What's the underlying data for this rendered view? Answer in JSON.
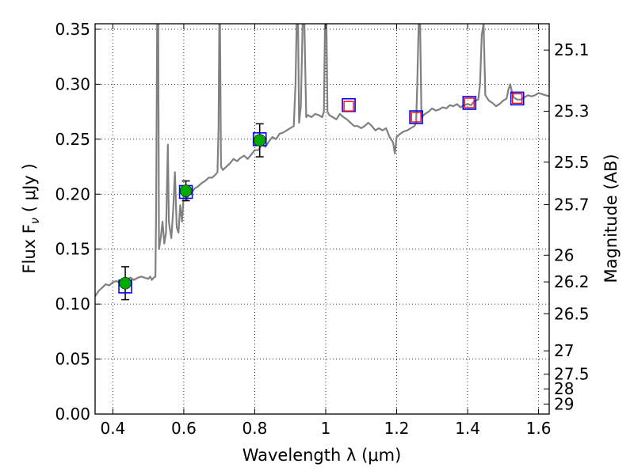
{
  "chart_data": {
    "type": "scatter",
    "xlabel": "Wavelength  λ (μm)",
    "ylabel": "Flux  F",
    "ylabel_subscript": "ν",
    "ylabel_unit": "  ( μJy )",
    "y2label": "Magnitude (AB)",
    "xlim": [
      0.35,
      1.63
    ],
    "ylim": [
      0.0,
      0.355
    ],
    "x_ticks": [
      0.4,
      0.6,
      0.8,
      1.0,
      1.2,
      1.4,
      1.6
    ],
    "x_tick_labels": [
      "0.4",
      "0.6",
      "0.8",
      "1",
      "1.2",
      "1.4",
      "1.6"
    ],
    "y_ticks": [
      0.0,
      0.05,
      0.1,
      0.15,
      0.2,
      0.25,
      0.3,
      0.35
    ],
    "y_tick_labels": [
      "0.00",
      "0.05",
      "0.10",
      "0.15",
      "0.20",
      "0.25",
      "0.30",
      "0.35"
    ],
    "y2_ticks": [
      {
        "label": "25.1",
        "flux": 0.3311
      },
      {
        "label": "25.3",
        "flux": 0.2754
      },
      {
        "label": "25.5",
        "flux": 0.2291
      },
      {
        "label": "25.7",
        "flux": 0.1905
      },
      {
        "label": "26",
        "flux": 0.1445
      },
      {
        "label": "26.2",
        "flux": 0.1202
      },
      {
        "label": "26.5",
        "flux": 0.0912
      },
      {
        "label": "27",
        "flux": 0.0575
      },
      {
        "label": "27.5",
        "flux": 0.0363
      },
      {
        "label": "28",
        "flux": 0.0229
      },
      {
        "label": "29",
        "flux": 0.0091
      }
    ],
    "grid": true,
    "series": [
      {
        "style": "line",
        "color": "#808080",
        "points": [
          [
            0.35,
            0.107
          ],
          [
            0.36,
            0.112
          ],
          [
            0.37,
            0.115
          ],
          [
            0.38,
            0.118
          ],
          [
            0.39,
            0.117
          ],
          [
            0.4,
            0.12
          ],
          [
            0.41,
            0.121
          ],
          [
            0.42,
            0.119
          ],
          [
            0.43,
            0.121
          ],
          [
            0.44,
            0.123
          ],
          [
            0.45,
            0.124
          ],
          [
            0.46,
            0.122
          ],
          [
            0.47,
            0.124
          ],
          [
            0.48,
            0.125
          ],
          [
            0.49,
            0.124
          ],
          [
            0.5,
            0.123
          ],
          [
            0.505,
            0.125
          ],
          [
            0.51,
            0.122
          ],
          [
            0.515,
            0.124
          ],
          [
            0.52,
            0.125
          ],
          [
            0.522,
            0.185
          ],
          [
            0.525,
            0.355
          ],
          [
            0.528,
            0.355
          ],
          [
            0.53,
            0.15
          ],
          [
            0.535,
            0.16
          ],
          [
            0.54,
            0.175
          ],
          [
            0.545,
            0.155
          ],
          [
            0.55,
            0.165
          ],
          [
            0.555,
            0.245
          ],
          [
            0.558,
            0.175
          ],
          [
            0.56,
            0.17
          ],
          [
            0.565,
            0.16
          ],
          [
            0.57,
            0.185
          ],
          [
            0.575,
            0.22
          ],
          [
            0.58,
            0.17
          ],
          [
            0.585,
            0.165
          ],
          [
            0.59,
            0.19
          ],
          [
            0.595,
            0.175
          ],
          [
            0.6,
            0.2
          ],
          [
            0.605,
            0.198
          ],
          [
            0.61,
            0.195
          ],
          [
            0.615,
            0.205
          ],
          [
            0.62,
            0.2
          ],
          [
            0.63,
            0.205
          ],
          [
            0.64,
            0.207
          ],
          [
            0.65,
            0.21
          ],
          [
            0.66,
            0.212
          ],
          [
            0.67,
            0.215
          ],
          [
            0.68,
            0.215
          ],
          [
            0.69,
            0.218
          ],
          [
            0.695,
            0.22
          ],
          [
            0.698,
            0.26
          ],
          [
            0.7,
            0.355
          ],
          [
            0.702,
            0.355
          ],
          [
            0.705,
            0.225
          ],
          [
            0.71,
            0.222
          ],
          [
            0.72,
            0.225
          ],
          [
            0.73,
            0.228
          ],
          [
            0.74,
            0.232
          ],
          [
            0.75,
            0.23
          ],
          [
            0.76,
            0.233
          ],
          [
            0.77,
            0.235
          ],
          [
            0.78,
            0.232
          ],
          [
            0.79,
            0.236
          ],
          [
            0.8,
            0.24
          ],
          [
            0.81,
            0.24
          ],
          [
            0.82,
            0.245
          ],
          [
            0.83,
            0.243
          ],
          [
            0.84,
            0.248
          ],
          [
            0.85,
            0.252
          ],
          [
            0.86,
            0.25
          ],
          [
            0.87,
            0.255
          ],
          [
            0.88,
            0.256
          ],
          [
            0.89,
            0.258
          ],
          [
            0.9,
            0.26
          ],
          [
            0.91,
            0.262
          ],
          [
            0.915,
            0.3
          ],
          [
            0.918,
            0.355
          ],
          [
            0.922,
            0.355
          ],
          [
            0.925,
            0.265
          ],
          [
            0.93,
            0.28
          ],
          [
            0.935,
            0.355
          ],
          [
            0.94,
            0.355
          ],
          [
            0.945,
            0.27
          ],
          [
            0.95,
            0.272
          ],
          [
            0.96,
            0.27
          ],
          [
            0.97,
            0.273
          ],
          [
            0.98,
            0.272
          ],
          [
            0.99,
            0.27
          ],
          [
            0.995,
            0.275
          ],
          [
            0.998,
            0.355
          ],
          [
            1.002,
            0.355
          ],
          [
            1.005,
            0.275
          ],
          [
            1.01,
            0.272
          ],
          [
            1.02,
            0.27
          ],
          [
            1.03,
            0.268
          ],
          [
            1.04,
            0.273
          ],
          [
            1.05,
            0.27
          ],
          [
            1.06,
            0.268
          ],
          [
            1.07,
            0.265
          ],
          [
            1.08,
            0.262
          ],
          [
            1.09,
            0.262
          ],
          [
            1.1,
            0.26
          ],
          [
            1.11,
            0.262
          ],
          [
            1.12,
            0.265
          ],
          [
            1.13,
            0.262
          ],
          [
            1.14,
            0.258
          ],
          [
            1.15,
            0.26
          ],
          [
            1.16,
            0.258
          ],
          [
            1.17,
            0.26
          ],
          [
            1.18,
            0.252
          ],
          [
            1.19,
            0.247
          ],
          [
            1.195,
            0.237
          ],
          [
            1.2,
            0.252
          ],
          [
            1.21,
            0.255
          ],
          [
            1.22,
            0.257
          ],
          [
            1.23,
            0.258
          ],
          [
            1.24,
            0.26
          ],
          [
            1.25,
            0.262
          ],
          [
            1.255,
            0.265
          ],
          [
            1.258,
            0.3
          ],
          [
            1.262,
            0.355
          ],
          [
            1.266,
            0.355
          ],
          [
            1.27,
            0.27
          ],
          [
            1.28,
            0.273
          ],
          [
            1.29,
            0.275
          ],
          [
            1.3,
            0.278
          ],
          [
            1.31,
            0.276
          ],
          [
            1.32,
            0.277
          ],
          [
            1.33,
            0.279
          ],
          [
            1.34,
            0.278
          ],
          [
            1.35,
            0.281
          ],
          [
            1.36,
            0.28
          ],
          [
            1.37,
            0.282
          ],
          [
            1.38,
            0.279
          ],
          [
            1.39,
            0.281
          ],
          [
            1.4,
            0.282
          ],
          [
            1.41,
            0.281
          ],
          [
            1.42,
            0.285
          ],
          [
            1.43,
            0.286
          ],
          [
            1.435,
            0.3
          ],
          [
            1.44,
            0.345
          ],
          [
            1.445,
            0.355
          ],
          [
            1.45,
            0.29
          ],
          [
            1.46,
            0.285
          ],
          [
            1.47,
            0.283
          ],
          [
            1.48,
            0.28
          ],
          [
            1.49,
            0.282
          ],
          [
            1.5,
            0.285
          ],
          [
            1.51,
            0.287
          ],
          [
            1.515,
            0.295
          ],
          [
            1.52,
            0.3
          ],
          [
            1.525,
            0.293
          ],
          [
            1.53,
            0.288
          ],
          [
            1.54,
            0.286
          ],
          [
            1.55,
            0.286
          ],
          [
            1.56,
            0.288
          ],
          [
            1.57,
            0.29
          ],
          [
            1.58,
            0.289
          ],
          [
            1.59,
            0.29
          ],
          [
            1.6,
            0.292
          ],
          [
            1.61,
            0.291
          ],
          [
            1.62,
            0.29
          ],
          [
            1.63,
            0.289
          ]
        ]
      },
      {
        "style": "measured-points",
        "marker": "circle",
        "color": "#00aa00",
        "points": [
          {
            "x": 0.435,
            "y": 0.119,
            "err": 0.015
          },
          {
            "x": 0.606,
            "y": 0.203,
            "err": 0.009
          },
          {
            "x": 0.814,
            "y": 0.249,
            "err": 0.015
          }
        ]
      },
      {
        "style": "model-points",
        "marker": "square",
        "color": "#0000ff",
        "points": [
          [
            0.435,
            0.116
          ],
          [
            0.606,
            0.202
          ],
          [
            0.814,
            0.25
          ],
          [
            1.065,
            0.281
          ],
          [
            1.255,
            0.27
          ],
          [
            1.405,
            0.283
          ],
          [
            1.54,
            0.287
          ]
        ]
      },
      {
        "style": "upper-points",
        "marker": "square",
        "color": "#ff0000",
        "points": [
          [
            1.065,
            0.28
          ],
          [
            1.255,
            0.27
          ],
          [
            1.405,
            0.283
          ],
          [
            1.54,
            0.287
          ]
        ]
      }
    ]
  }
}
